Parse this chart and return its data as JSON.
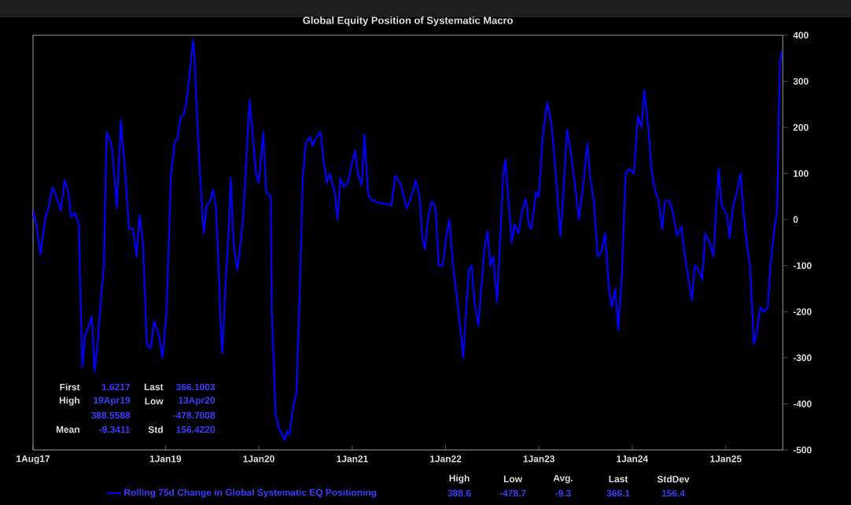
{
  "chart_data": {
    "type": "line",
    "title": "Global Equity Position of Systematic Macro",
    "xlim": [
      "2017-08-01",
      "2025-08-12"
    ],
    "ylim": [
      -500,
      400
    ],
    "xticks": [
      {
        "value": "2017-08-01",
        "label": "1Aug17"
      },
      {
        "value": "2019-01-01",
        "label": "1Jan19"
      },
      {
        "value": "2020-01-01",
        "label": "1Jan20"
      },
      {
        "value": "2021-01-01",
        "label": "1Jan21"
      },
      {
        "value": "2022-01-01",
        "label": "1Jan22"
      },
      {
        "value": "2023-01-01",
        "label": "1Jan23"
      },
      {
        "value": "2024-01-01",
        "label": "1Jan24"
      },
      {
        "value": "2025-01-01",
        "label": "1Jan25"
      }
    ],
    "yticks": [
      -500,
      -400,
      -300,
      -200,
      -100,
      0,
      100,
      200,
      300,
      400
    ],
    "grid": false,
    "legend": "bottom",
    "marker": "none",
    "line_style": "solid",
    "series": [
      {
        "name": "Rolling 75d Change in Global Systematic EQ Positioning",
        "color": "#0000ff",
        "x": [
          "2017-08-01",
          "2017-08-04",
          "2017-08-19",
          "2017-08-30",
          "2017-09-17",
          "2017-10-02",
          "2017-10-16",
          "2017-11-07",
          "2017-11-18",
          "2017-12-03",
          "2017-12-17",
          "2017-12-28",
          "2018-01-12",
          "2018-01-27",
          "2018-02-07",
          "2018-02-10",
          "2018-02-21",
          "2018-03-08",
          "2018-03-19",
          "2018-03-30",
          "2018-04-10",
          "2018-04-21",
          "2018-05-05",
          "2018-05-16",
          "2018-05-31",
          "2018-06-07",
          "2018-06-25",
          "2018-07-10",
          "2018-07-28",
          "2018-08-12",
          "2018-08-26",
          "2018-09-10",
          "2018-09-21",
          "2018-10-05",
          "2018-10-20",
          "2018-11-04",
          "2018-11-18",
          "2018-12-06",
          "2018-12-21",
          "2019-01-05",
          "2019-01-23",
          "2019-02-07",
          "2019-02-17",
          "2019-02-28",
          "2019-03-15",
          "2019-03-26",
          "2019-04-19",
          "2019-04-24",
          "2019-05-05",
          "2019-05-16",
          "2019-05-31",
          "2019-06-11",
          "2019-06-25",
          "2019-07-06",
          "2019-07-17",
          "2019-07-28",
          "2019-08-04",
          "2019-08-12",
          "2019-08-23",
          "2019-09-03",
          "2019-09-14",
          "2019-09-24",
          "2019-10-09",
          "2019-10-20",
          "2019-10-31",
          "2019-11-11",
          "2019-11-26",
          "2019-12-06",
          "2019-12-21",
          "2020-01-01",
          "2020-01-19",
          "2020-01-30",
          "2020-02-17",
          "2020-02-21",
          "2020-03-07",
          "2020-03-18",
          "2020-04-13",
          "2020-04-20",
          "2020-05-01",
          "2020-05-16",
          "2020-05-27",
          "2020-06-07",
          "2020-06-22",
          "2020-07-03",
          "2020-07-21",
          "2020-07-28",
          "2020-08-15",
          "2020-08-30",
          "2020-09-10",
          "2020-09-24",
          "2020-10-05",
          "2020-10-24",
          "2020-11-04",
          "2020-11-15",
          "2020-11-29",
          "2020-12-14",
          "2020-12-28",
          "2021-01-12",
          "2021-01-23",
          "2021-02-07",
          "2021-02-17",
          "2021-03-04",
          "2021-03-11",
          "2021-03-30",
          "2021-04-21",
          "2021-05-12",
          "2021-06-03",
          "2021-06-18",
          "2021-07-06",
          "2021-07-17",
          "2021-08-01",
          "2021-08-12",
          "2021-08-26",
          "2021-09-06",
          "2021-09-21",
          "2021-10-02",
          "2021-10-13",
          "2021-10-24",
          "2021-11-07",
          "2021-11-22",
          "2021-12-06",
          "2021-12-21",
          "2022-01-05",
          "2022-01-16",
          "2022-01-30",
          "2022-02-21",
          "2022-03-11",
          "2022-03-22",
          "2022-04-02",
          "2022-04-13",
          "2022-04-24",
          "2022-05-09",
          "2022-05-20",
          "2022-06-03",
          "2022-06-14",
          "2022-06-25",
          "2022-07-06",
          "2022-07-21",
          "2022-08-01",
          "2022-08-15",
          "2022-08-23",
          "2022-09-03",
          "2022-09-17",
          "2022-09-28",
          "2022-10-13",
          "2022-10-27",
          "2022-11-11",
          "2022-11-22",
          "2022-12-03",
          "2022-12-21",
          "2023-01-01",
          "2023-01-16",
          "2023-02-03",
          "2023-02-21",
          "2023-03-08",
          "2023-03-26",
          "2023-04-06",
          "2023-04-21",
          "2023-05-05",
          "2023-05-23",
          "2023-06-07",
          "2023-06-22",
          "2023-07-10",
          "2023-07-21",
          "2023-08-04",
          "2023-08-19",
          "2023-09-03",
          "2023-09-17",
          "2023-10-02",
          "2023-10-13",
          "2023-10-27",
          "2023-11-07",
          "2023-11-22",
          "2023-12-06",
          "2023-12-21",
          "2024-01-08",
          "2024-01-23",
          "2024-02-07",
          "2024-02-17",
          "2024-03-04",
          "2024-03-18",
          "2024-04-01",
          "2024-04-12",
          "2024-04-27",
          "2024-05-08",
          "2024-05-26",
          "2024-06-06",
          "2024-06-24",
          "2024-07-12",
          "2024-07-23",
          "2024-08-11",
          "2024-08-22",
          "2024-09-02",
          "2024-09-16",
          "2024-10-01",
          "2024-10-12",
          "2024-10-30",
          "2024-11-14",
          "2024-11-25",
          "2024-12-05",
          "2024-12-16",
          "2025-01-05",
          "2025-01-16",
          "2025-01-30",
          "2025-02-14",
          "2025-02-28",
          "2025-03-11",
          "2025-03-26",
          "2025-04-06",
          "2025-04-21",
          "2025-05-01",
          "2025-05-16",
          "2025-05-31",
          "2025-06-14",
          "2025-06-25",
          "2025-07-10",
          "2025-07-21",
          "2025-08-01",
          "2025-08-08"
        ],
        "values": [
          2,
          15,
          -30,
          -75,
          0,
          30,
          70,
          40,
          20,
          85,
          60,
          5,
          15,
          -10,
          -260,
          -320,
          -250,
          -230,
          -210,
          -330,
          -270,
          -190,
          -100,
          190,
          170,
          150,
          25,
          215,
          100,
          -20,
          -20,
          -80,
          10,
          -50,
          -270,
          -280,
          -220,
          -250,
          -300,
          -200,
          100,
          170,
          175,
          220,
          230,
          260,
          389,
          360,
          220,
          100,
          -30,
          30,
          40,
          65,
          30,
          -100,
          -220,
          -290,
          -150,
          -50,
          90,
          -50,
          -110,
          -60,
          0,
          100,
          260,
          200,
          100,
          80,
          190,
          60,
          50,
          -200,
          -420,
          -450,
          -479,
          -460,
          -465,
          -400,
          -380,
          -200,
          100,
          165,
          180,
          160,
          180,
          190,
          130,
          80,
          100,
          60,
          0,
          90,
          70,
          80,
          115,
          150,
          100,
          75,
          185,
          60,
          45,
          40,
          35,
          35,
          30,
          95,
          80,
          60,
          25,
          40,
          60,
          85,
          50,
          -40,
          -65,
          0,
          40,
          30,
          -100,
          -100,
          -30,
          0,
          -100,
          -200,
          -300,
          -200,
          -110,
          -100,
          -180,
          -230,
          -150,
          -60,
          -25,
          -100,
          -80,
          -180,
          -60,
          100,
          130,
          50,
          -50,
          -10,
          -30,
          20,
          45,
          -10,
          -20,
          60,
          50,
          180,
          255,
          200,
          100,
          -35,
          50,
          195,
          150,
          70,
          0,
          70,
          165,
          90,
          40,
          -80,
          -70,
          -30,
          -150,
          -190,
          -150,
          -240,
          -120,
          100,
          110,
          100,
          225,
          200,
          280,
          200,
          100,
          60,
          45,
          -20,
          40,
          40,
          20,
          -35,
          -15,
          -70,
          -140,
          -175,
          -100,
          -110,
          -130,
          -30,
          -50,
          -80,
          30,
          110,
          30,
          10,
          -40,
          30,
          60,
          100,
          20,
          -60,
          -100,
          -270,
          -250,
          -190,
          -200,
          -190,
          -100,
          -20,
          20,
          340,
          366
        ]
      }
    ],
    "annotations": [
      "First",
      "1.6217",
      "Last",
      "366.1003",
      "High",
      "19Apr19",
      "Low",
      "13Apr20",
      "388.5588",
      "-478.7008",
      "Mean",
      "-9.3411",
      "Std",
      "156.4220",
      "High",
      "Low",
      "Avg.",
      "Last",
      "StdDev",
      "388.6",
      "-478.7",
      "-9.3",
      "366.1",
      "156.4"
    ]
  }
}
